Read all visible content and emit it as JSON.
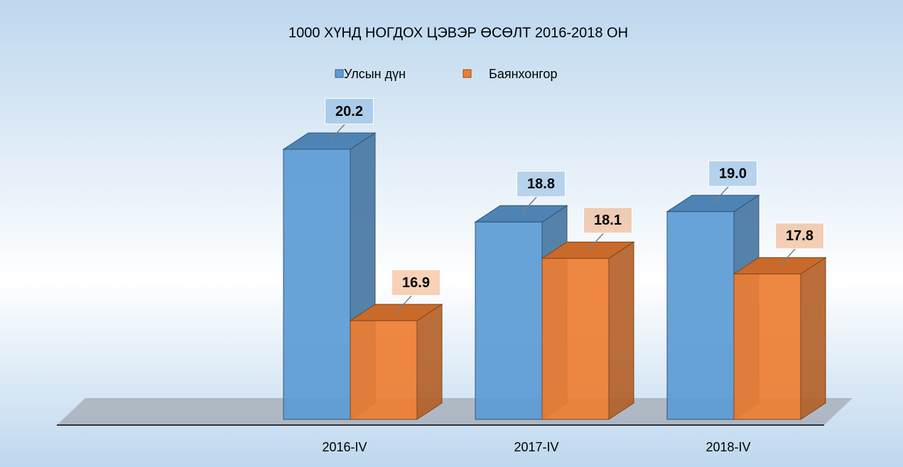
{
  "chart_data": {
    "type": "bar3d",
    "title": "1000 ХҮНД НОГДОХ ЦЭВЭР ӨСӨЛТ 2016-2018 ОН",
    "categories": [
      null,
      "2016-IV",
      "2017-IV",
      "2018-IV"
    ],
    "series": [
      {
        "name": "Улсын дүн",
        "color": "#5b9bd5",
        "values": [
          null,
          20.2,
          18.8,
          19.0
        ],
        "value_labels": [
          null,
          "20.2",
          "18.8",
          "19.0"
        ]
      },
      {
        "name": "Баянхонгор",
        "color": "#ed7d31",
        "values": [
          null,
          16.9,
          18.1,
          17.8
        ],
        "value_labels": [
          null,
          "16.9",
          "18.1",
          "17.8"
        ]
      }
    ],
    "ylim": [
      15,
      21.5
    ],
    "legend": "top"
  }
}
